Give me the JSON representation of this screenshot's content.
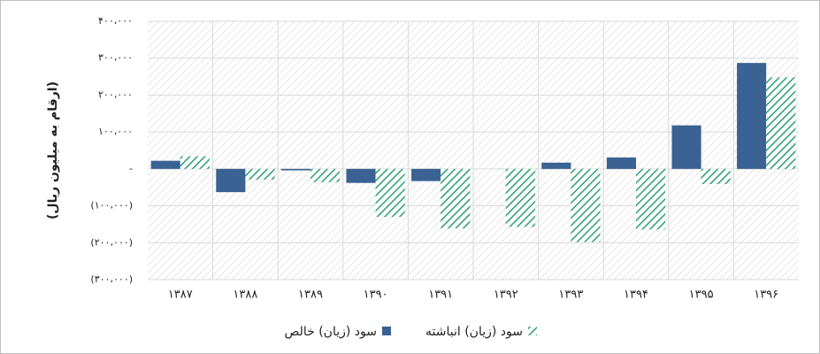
{
  "chart_data": {
    "type": "bar",
    "y_label": "(ارقام به میلیون ریال)",
    "categories": [
      "۱۳۸۷",
      "۱۳۸۸",
      "۱۳۸۹",
      "۱۳۹۰",
      "۱۳۹۱",
      "۱۳۹۲",
      "۱۳۹۳",
      "۱۳۹۴",
      "۱۳۹۵",
      "۱۳۹۶"
    ],
    "series": [
      {
        "name": "سود (زیان) خالص",
        "color": "#3a6293",
        "hatch": false,
        "values": [
          22000,
          -63000,
          -4000,
          -38000,
          -33000,
          0,
          17000,
          31000,
          118000,
          287000
        ]
      },
      {
        "name": "سود (زیان) انباشته",
        "color": "#2aa070",
        "hatch": true,
        "values": [
          34000,
          -29000,
          -36000,
          -130000,
          -161000,
          -157000,
          -198000,
          -164000,
          -41000,
          248000
        ]
      }
    ],
    "ylim": [
      -300000,
      400000
    ],
    "yticks": [
      {
        "value": -300000,
        "label": "(۳۰۰،۰۰۰)"
      },
      {
        "value": -200000,
        "label": "(۲۰۰،۰۰۰)"
      },
      {
        "value": -100000,
        "label": "(۱۰۰،۰۰۰)"
      },
      {
        "value": 0,
        "label": "-"
      },
      {
        "value": 100000,
        "label": "۱۰۰،۰۰۰"
      },
      {
        "value": 200000,
        "label": "۲۰۰،۰۰۰"
      },
      {
        "value": 300000,
        "label": "۳۰۰،۰۰۰"
      },
      {
        "value": 400000,
        "label": "۴۰۰،۰۰۰"
      }
    ],
    "grid": true
  }
}
